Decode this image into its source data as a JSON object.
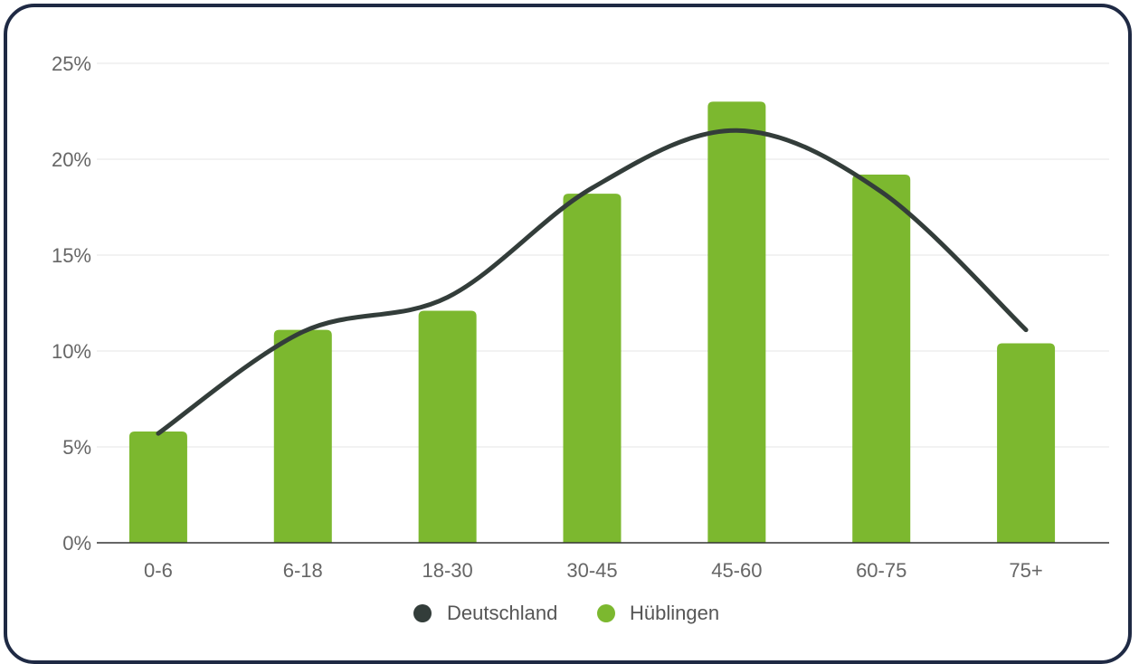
{
  "chart_data": {
    "type": "bar",
    "categories": [
      "0-6",
      "6-18",
      "18-30",
      "30-45",
      "45-60",
      "60-75",
      "75+"
    ],
    "series": [
      {
        "name": "Deutschland",
        "type": "line",
        "color": "#333d3a",
        "values": [
          5.7,
          11.0,
          12.8,
          18.5,
          21.5,
          18.3,
          11.1
        ]
      },
      {
        "name": "Hüblingen",
        "type": "bar",
        "color": "#7cb82f",
        "values": [
          5.8,
          11.1,
          12.1,
          18.2,
          23.0,
          19.2,
          10.4
        ]
      }
    ],
    "ylim": [
      0,
      25
    ],
    "yticks": [
      "0%",
      "5%",
      "10%",
      "15%",
      "20%",
      "25%"
    ],
    "ytick_values": [
      0,
      5,
      10,
      15,
      20,
      25
    ],
    "title": "",
    "xlabel": "",
    "ylabel": "",
    "grid": true,
    "legend_position": "bottom"
  }
}
